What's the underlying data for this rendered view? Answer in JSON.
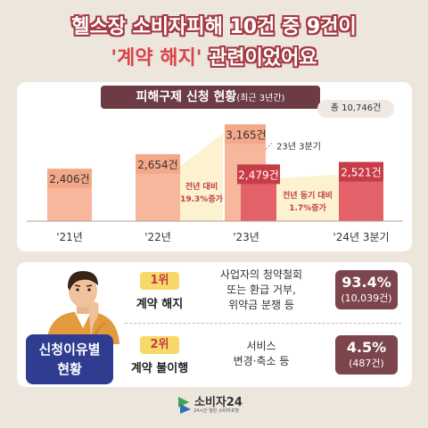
{
  "headline": {
    "line1": "헬스장 소비자피해 10건 중 9건이",
    "line2_quote": "'계약 해지'",
    "line2_rest": " 관련이었어요"
  },
  "panel": {
    "title": "피해구제 신청 현황",
    "title_sub": "(최근 3년간)",
    "total": "총 10,746건"
  },
  "chart_data": {
    "type": "bar",
    "title": "피해구제 신청 현황(최근 3년간)",
    "categories": [
      "'21년",
      "'22년",
      "'23년",
      "'24년 3분기"
    ],
    "series": [
      {
        "values": [
          2406,
          2654,
          3165,
          2521
        ]
      },
      {
        "name": "23년 3분기",
        "values": [
          null,
          null,
          2479,
          null
        ]
      }
    ],
    "labels": [
      "2,406건",
      "2,654건",
      "3,165건",
      "2,521건"
    ],
    "q3_label": "2,479건",
    "q3_tag": "23년 3분기",
    "annotations": [
      {
        "text1": "전년 대비",
        "text2": "19.3%증가"
      },
      {
        "text1": "전년 동기 대비",
        "text2": "1.7%증가"
      }
    ],
    "ylim": [
      0,
      3400
    ]
  },
  "reasons": {
    "title_line1": "신청이유별",
    "title_line2": "현황",
    "items": [
      {
        "rank": "1위",
        "name": "계약 해지",
        "desc": [
          "사업자의 청약철회",
          "또는 환급 거부,",
          "위약금 분쟁 등"
        ],
        "pct": "93.4%",
        "count": "(10,039건)",
        "color": "#7c454c"
      },
      {
        "rank": "2위",
        "name": "계약 불이행",
        "desc": [
          "서비스",
          "변경·축소 등"
        ],
        "pct": "4.5%",
        "count": "(487건)",
        "color": "#7c454c"
      }
    ]
  },
  "logo": {
    "name": "소비자24",
    "tagline": "24시간 열린 소비자포털"
  },
  "colors": {
    "bar_top": "#f4a889",
    "bar_body": "#f6b79c",
    "bar_hl_top": "#c73d47",
    "bar_hl_body": "#e3626a",
    "accent_red": "#c13d45",
    "panel_title_bg": "#6d3b43",
    "reason_title_bg": "#2f3c8f",
    "trend_fill": "#fdf2cf"
  },
  "icons": [
    "person-thinking-illustration",
    "consumer24-logo-icon"
  ]
}
